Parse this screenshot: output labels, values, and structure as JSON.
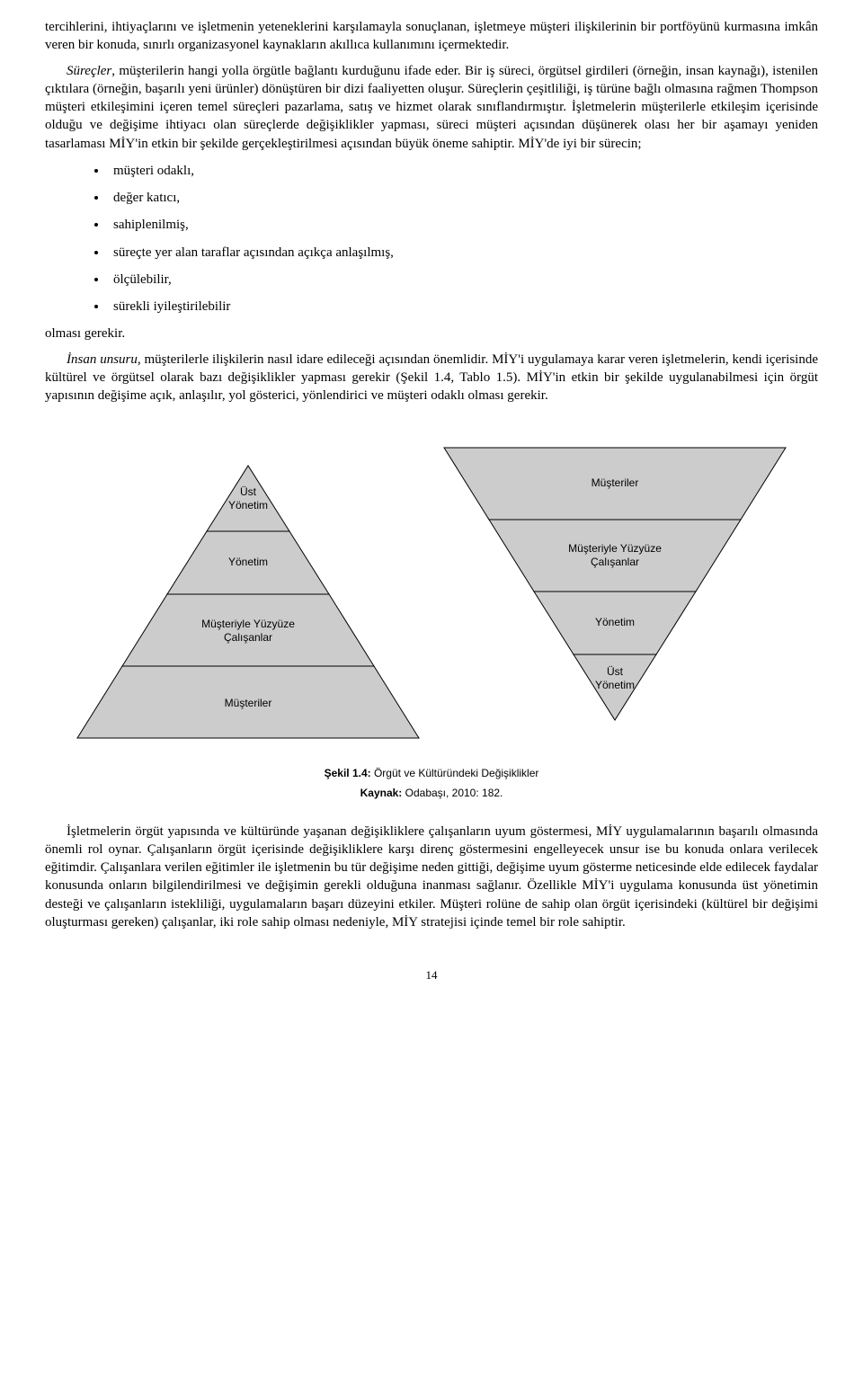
{
  "para1": "tercihlerini, ihtiyaçlarını ve işletmenin yeteneklerini karşılamayla sonuçlanan, işletmeye müşteri ilişkilerinin bir portföyünü kurmasına imkân veren bir konuda, sınırlı organizasyonel kaynakların akıllıca kullanımını içermektedir.",
  "para2_pre_italic": "Süreçler",
  "para2_rest": ", müşterilerin hangi yolla örgütle bağlantı kurduğunu ifade eder. Bir iş süreci, örgütsel girdileri (örneğin, insan kaynağı), istenilen çıktılara (örneğin, başarılı yeni ürünler) dönüştüren bir dizi faaliyetten oluşur. Süreçlerin çeşitliliği, iş türüne bağlı olmasına rağmen Thompson müşteri etkileşimini içeren temel süreçleri pazarlama, satış ve hizmet olarak sınıflandırmıştır. İşletmelerin müşterilerle etkileşim içerisinde olduğu ve değişime ihtiyacı olan süreçlerde değişiklikler yapması, süreci müşteri açısından düşünerek olası her bir aşamayı yeniden tasarlaması MİY'in etkin bir şekilde gerçekleştirilmesi açısından büyük öneme sahiptir. MİY'de iyi bir sürecin;",
  "bullets": [
    "müşteri odaklı,",
    "değer katıcı,",
    "sahiplenilmiş,",
    "süreçte yer alan taraflar açısından açıkça anlaşılmış,",
    "ölçülebilir,",
    "sürekli iyileştirilebilir"
  ],
  "olmasi": "olması gerekir.",
  "para3_pre_italic": "İnsan unsuru",
  "para3_rest": ", müşterilerle ilişkilerin nasıl idare edileceği açısından önemlidir. MİY'i uygulamaya karar veren işletmelerin, kendi içerisinde kültürel ve örgütsel olarak bazı değişiklikler yapması gerekir (Şekil 1.4, Tablo 1.5). MİY'in etkin bir şekilde uygulanabilmesi için örgüt yapısının değişime açık, anlaşılır, yol gösterici, yönlendirici ve müşteri odaklı olması gerekir.",
  "diagram": {
    "fill": "#cccccc",
    "stroke": "#000000",
    "stroke_width": 1,
    "left": {
      "labels": [
        "Üst\nYönetim",
        "Yönetim",
        "Müşteriyle Yüzyüze\nÇalışanlar",
        "Müşteriler"
      ]
    },
    "right": {
      "labels": [
        "Müşteriler",
        "Müşteriyle Yüzyüze\nÇalışanlar",
        "Yönetim",
        "Üst\nYönetim"
      ]
    }
  },
  "caption_bold": "Şekil 1.4:",
  "caption_rest": " Örgüt ve Kültüründeki Değişiklikler",
  "source_bold": "Kaynak:",
  "source_rest": " Odabaşı, 2010: 182.",
  "para4": "İşletmelerin örgüt yapısında ve kültüründe yaşanan değişikliklere çalışanların uyum göstermesi, MİY uygulamalarının başarılı olmasında önemli rol oynar. Çalışanların örgüt içerisinde değişikliklere karşı direnç göstermesini engelleyecek unsur ise bu konuda onlara verilecek eğitimdir. Çalışanlara verilen eğitimler ile işletmenin bu tür değişime neden gittiği, değişime uyum gösterme neticesinde elde edilecek faydalar konusunda onların bilgilendirilmesi ve değişimin gerekli olduğuna inanması sağlanır. Özellikle MİY'i uygulama konusunda üst yönetimin desteği ve çalışanların istekliliği, uygulamaların başarı düzeyini etkiler. Müşteri rolüne de sahip olan örgüt içerisindeki (kültürel bir değişimi oluşturması gereken) çalışanlar, iki role sahip olması nedeniyle, MİY stratejisi içinde temel bir role sahiptir.",
  "page_number": "14"
}
